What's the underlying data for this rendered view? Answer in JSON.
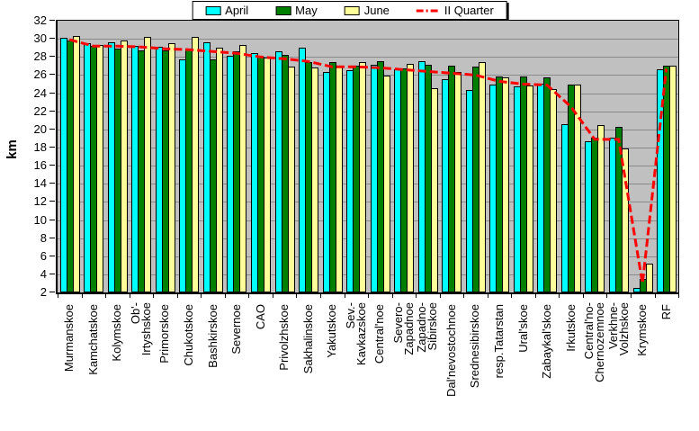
{
  "chart_data": {
    "type": "bar",
    "title": "",
    "xlabel": "",
    "ylabel": "km",
    "plot_bg": "#C0C0C0",
    "grid": true,
    "legend_position": "top-center",
    "y_axis": {
      "min": 2,
      "max": 32,
      "tick_step": 2,
      "tick_labels": [
        "2",
        "4",
        "6",
        "8",
        "10",
        "12",
        "14",
        "16",
        "18",
        "20",
        "22",
        "24",
        "26",
        "28",
        "30",
        "32"
      ]
    },
    "categories": [
      "Murmanskoe",
      "Kamchatskoe",
      "Kolymskoe",
      "Ob'-\nIrtyshskoe",
      "Primorskoe",
      "Chukotskoe",
      "Bashkirskoe",
      "Severnoe",
      "CAO",
      "Privolzhskoe",
      "Sakhalinskoe",
      "Yakutskoe",
      "Sev.-\nKavkazskoe",
      "Central'noe",
      "Severo-\nZapadnoe",
      "Zapadno-\nSibirskoe",
      "Dal'nevostochnoe",
      "Srednesibirskoe",
      "resp.Tatarstan",
      "Ural'skoe",
      "Zabaykal'skoe",
      "Irkutskoe",
      "Central'no-\nChernozemnoe",
      "Verkhne-\nVolzhskoe",
      "Krymskoe",
      "RF"
    ],
    "series": [
      {
        "name": "April",
        "type": "bar",
        "color": "#00FFFF",
        "values": [
          29.9,
          29.3,
          29.4,
          29.0,
          28.9,
          27.5,
          29.4,
          27.9,
          28.2,
          28.4,
          28.8,
          26.1,
          26.3,
          26.9,
          26.4,
          27.3,
          25.3,
          24.2,
          24.8,
          24.6,
          24.9,
          20.4,
          18.5,
          18.9,
          2.3,
          26.4
        ]
      },
      {
        "name": "May",
        "type": "bar",
        "color": "#008000",
        "values": [
          29.6,
          29.0,
          28.7,
          28.5,
          28.5,
          28.7,
          27.5,
          28.4,
          27.8,
          28.0,
          27.2,
          27.2,
          26.8,
          27.3,
          26.5,
          26.9,
          26.8,
          26.7,
          25.6,
          25.6,
          25.5,
          24.8,
          18.9,
          20.1,
          3.3,
          26.8
        ]
      },
      {
        "name": "June",
        "type": "bar",
        "color": "#FFFF99",
        "values": [
          30.1,
          29.1,
          29.6,
          30.0,
          29.3,
          30.0,
          28.8,
          29.1,
          27.7,
          26.7,
          26.6,
          26.8,
          27.2,
          25.7,
          27.0,
          24.4,
          26.1,
          27.2,
          25.5,
          24.7,
          24.3,
          24.8,
          20.3,
          17.7,
          5.0,
          26.8
        ]
      },
      {
        "name": "II Quarter",
        "type": "line",
        "color": "#FF0000",
        "style": "dashed",
        "values": [
          29.9,
          29.2,
          29.2,
          29.1,
          28.9,
          28.8,
          28.6,
          28.4,
          28.0,
          27.8,
          27.5,
          26.9,
          26.9,
          26.8,
          26.6,
          26.4,
          26.2,
          26.0,
          25.3,
          25.0,
          24.9,
          22.5,
          18.9,
          18.9,
          3.0,
          26.7
        ]
      }
    ]
  }
}
